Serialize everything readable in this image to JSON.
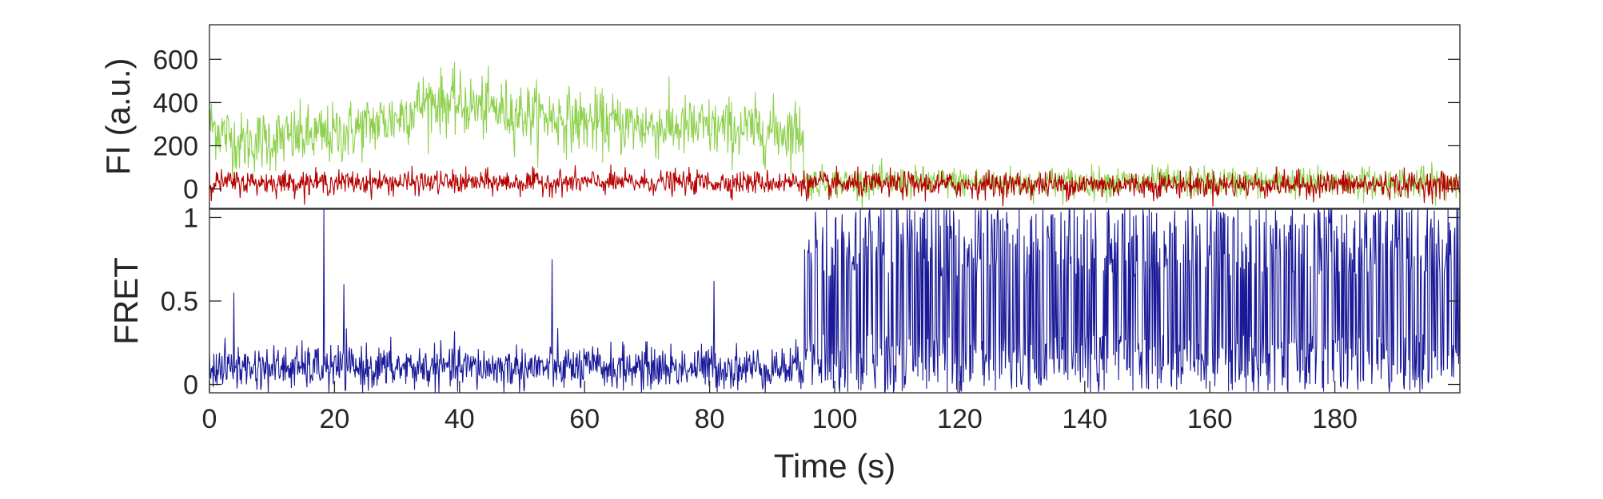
{
  "chart_data": [
    {
      "type": "line",
      "panel": "top",
      "ylabel": "FI (a.u.)",
      "xlim": [
        0,
        200
      ],
      "ylim": [
        -90,
        760
      ],
      "yticks": [
        0,
        200,
        400,
        600
      ],
      "ytick_labels": [
        "0",
        "200",
        "400",
        "600"
      ],
      "grid": false,
      "series": [
        {
          "color": "#8fd14f",
          "segments": [
            {
              "x": [
                0,
                5,
                10,
                20,
                30,
                35,
                40,
                50,
                60,
                70,
                80,
                90,
                95
              ],
              "y": [
                300,
                210,
                230,
                250,
                330,
                410,
                390,
                350,
                310,
                290,
                280,
                270,
                270
              ]
            },
            {
              "x": [
                95,
                200
              ],
              "y": [
                30,
                30
              ]
            }
          ],
          "noise_amplitude": [
            130,
            65
          ]
        },
        {
          "color": "#b50000",
          "segments": [
            {
              "x": [
                0,
                95
              ],
              "y": [
                30,
                30
              ]
            },
            {
              "x": [
                95,
                200
              ],
              "y": [
                20,
                20
              ]
            }
          ],
          "noise_amplitude": [
            50,
            55
          ]
        }
      ]
    },
    {
      "type": "line",
      "panel": "bottom",
      "ylabel": "FRET",
      "xlabel": "Time (s)",
      "xlim": [
        0,
        200
      ],
      "ylim": [
        -0.05,
        1.05
      ],
      "yticks": [
        0,
        0.5,
        1
      ],
      "ytick_labels": [
        "0",
        "0.5",
        "1"
      ],
      "xticks": [
        0,
        20,
        40,
        60,
        80,
        100,
        120,
        140,
        160,
        180
      ],
      "xtick_labels": [
        "0",
        "20",
        "40",
        "60",
        "80",
        "100",
        "120",
        "140",
        "160",
        "180"
      ],
      "grid": false,
      "series": [
        {
          "color": "#1a1a99",
          "segments": [
            {
              "x": [
                0,
                95
              ],
              "y": [
                0.1,
                0.1
              ]
            },
            {
              "x": [
                95,
                200
              ],
              "y": [
                0.5,
                0.5
              ]
            }
          ],
          "noise_amplitude": [
            0.12,
            0.6
          ],
          "peaks": [
            {
              "x": 18.3,
              "y": 1.05
            },
            {
              "x": 21.5,
              "y": 0.6
            },
            {
              "x": 54.8,
              "y": 0.75
            },
            {
              "x": 80.7,
              "y": 0.62
            },
            {
              "x": 3.9,
              "y": 0.55
            }
          ]
        }
      ]
    }
  ]
}
